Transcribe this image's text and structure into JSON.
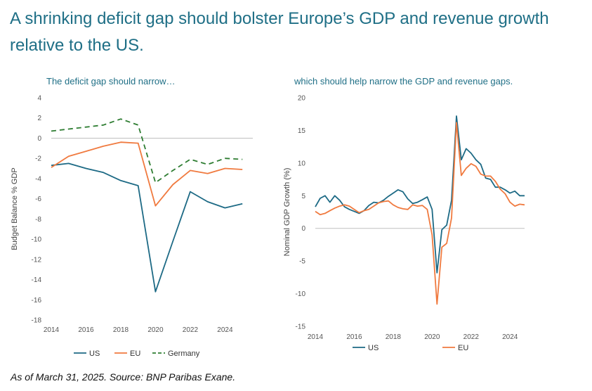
{
  "title": "A shrinking deficit gap should bolster Europe’s GDP and revenue growth relative to the US.",
  "source": "As of March 31, 2025. Source: BNP Paribas Exane.",
  "colors": {
    "us": "#1d6a85",
    "eu": "#f07a3f",
    "germany": "#2e7d32",
    "text": "#1f6f86",
    "axis": "#bfbfbf"
  },
  "chart_data": [
    {
      "type": "line",
      "subtitle": "The deficit gap should narrow…",
      "ylabel": "Budget Balance % GDP",
      "xlabel": "",
      "xlim": [
        2014,
        2025.6
      ],
      "ylim": [
        -18,
        4
      ],
      "xticks": [
        "2014",
        "2016",
        "2018",
        "2020",
        "2022",
        "2024"
      ],
      "yticks": [
        "4",
        "2",
        "0",
        "-2",
        "-4",
        "-6",
        "-8",
        "-10",
        "-12",
        "-14",
        "-16",
        "-18"
      ],
      "legend": "bottom",
      "series": [
        {
          "name": "US",
          "key": "us",
          "dash": false,
          "x": [
            2014,
            2015,
            2016,
            2017,
            2018,
            2019,
            2020,
            2021,
            2022,
            2023,
            2024,
            2025
          ],
          "y": [
            -2.7,
            -2.5,
            -3.0,
            -3.4,
            -4.2,
            -4.7,
            -15.2,
            -10.2,
            -5.3,
            -6.3,
            -6.9,
            -6.5
          ]
        },
        {
          "name": "EU",
          "key": "eu",
          "dash": false,
          "x": [
            2014,
            2015,
            2016,
            2017,
            2018,
            2019,
            2020,
            2021,
            2022,
            2023,
            2024,
            2025
          ],
          "y": [
            -2.9,
            -1.8,
            -1.3,
            -0.8,
            -0.4,
            -0.5,
            -6.7,
            -4.6,
            -3.2,
            -3.5,
            -3.0,
            -3.1
          ]
        },
        {
          "name": "Germany",
          "key": "germany",
          "dash": true,
          "x": [
            2014,
            2015,
            2016,
            2017,
            2018,
            2019,
            2020,
            2021,
            2022,
            2023,
            2024,
            2025
          ],
          "y": [
            0.7,
            0.9,
            1.1,
            1.3,
            1.9,
            1.3,
            -4.4,
            -3.2,
            -2.1,
            -2.6,
            -2.0,
            -2.1
          ]
        }
      ]
    },
    {
      "type": "line",
      "subtitle": "which should help narrow the GDP and revenue gaps.",
      "ylabel": "Nominal GDP Growth (%)",
      "xlabel": "",
      "xlim": [
        2014,
        2024.75
      ],
      "ylim": [
        -15,
        20
      ],
      "xticks": [
        "2014",
        "2016",
        "2018",
        "2020",
        "2022",
        "2024"
      ],
      "yticks": [
        "20",
        "15",
        "10",
        "5",
        "0",
        "-5",
        "-10",
        "-15"
      ],
      "legend": "bottom",
      "series": [
        {
          "name": "US",
          "key": "us",
          "dash": false,
          "x": [
            2014,
            2014.25,
            2014.5,
            2014.75,
            2015,
            2015.25,
            2015.5,
            2015.75,
            2016,
            2016.25,
            2016.5,
            2016.75,
            2017,
            2017.25,
            2017.5,
            2017.75,
            2018,
            2018.25,
            2018.5,
            2018.75,
            2019,
            2019.25,
            2019.5,
            2019.75,
            2020,
            2020.25,
            2020.5,
            2020.75,
            2021,
            2021.25,
            2021.5,
            2021.75,
            2022,
            2022.25,
            2022.5,
            2022.75,
            2023,
            2023.25,
            2023.5,
            2023.75,
            2024,
            2024.25,
            2024.5,
            2024.75
          ],
          "y": [
            3.3,
            4.6,
            5.0,
            4.0,
            5.0,
            4.3,
            3.3,
            2.9,
            2.6,
            2.3,
            2.7,
            3.5,
            4.0,
            3.9,
            4.3,
            4.9,
            5.4,
            5.9,
            5.6,
            4.5,
            3.8,
            4.0,
            4.4,
            4.8,
            2.9,
            -6.8,
            -0.2,
            0.5,
            4.3,
            17.2,
            10.5,
            12.2,
            11.5,
            10.5,
            9.8,
            7.7,
            7.5,
            6.3,
            6.3,
            5.9,
            5.4,
            5.7,
            5.0,
            5.0
          ]
        },
        {
          "name": "EU",
          "key": "eu",
          "dash": false,
          "x": [
            2014,
            2014.25,
            2014.5,
            2014.75,
            2015,
            2015.25,
            2015.5,
            2015.75,
            2016,
            2016.25,
            2016.5,
            2016.75,
            2017,
            2017.25,
            2017.5,
            2017.75,
            2018,
            2018.25,
            2018.5,
            2018.75,
            2019,
            2019.25,
            2019.5,
            2019.75,
            2020,
            2020.25,
            2020.5,
            2020.75,
            2021,
            2021.25,
            2021.5,
            2021.75,
            2022,
            2022.25,
            2022.5,
            2022.75,
            2023,
            2023.25,
            2023.5,
            2023.75,
            2024,
            2024.25,
            2024.5,
            2024.75
          ],
          "y": [
            2.6,
            2.1,
            2.3,
            2.7,
            3.1,
            3.4,
            3.6,
            3.4,
            2.9,
            2.4,
            2.7,
            2.9,
            3.4,
            3.9,
            4.1,
            4.2,
            3.6,
            3.2,
            3.0,
            2.9,
            3.6,
            3.4,
            3.5,
            2.9,
            -1.0,
            -11.6,
            -2.9,
            -2.3,
            1.6,
            16.2,
            8.1,
            9.2,
            9.9,
            9.5,
            8.3,
            8.0,
            8.0,
            7.2,
            6.0,
            5.3,
            4.0,
            3.4,
            3.7,
            3.6
          ]
        }
      ]
    }
  ]
}
